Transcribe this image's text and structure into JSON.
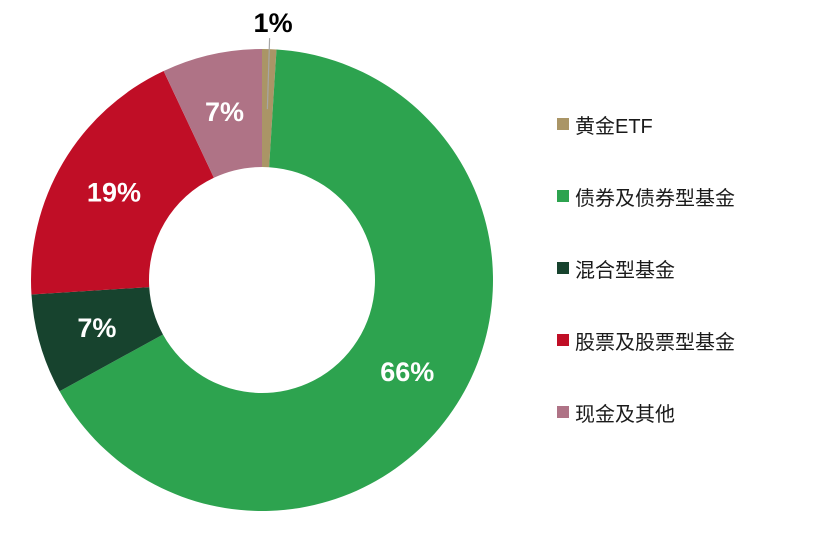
{
  "chart_data": {
    "type": "pie",
    "subtype": "donut",
    "title": "",
    "legend_position": "right",
    "direction": "clockwise",
    "start_angle_deg": 0,
    "inner_radius_ratio": 0.49,
    "background_color": "#FFFFFF",
    "data_label_color": "#FFFFFF",
    "outside_label_color": "#000000",
    "leader_line_color": "#A6A6A6",
    "series": [
      {
        "label": "黄金ETF",
        "value": 1,
        "data_label": "1%",
        "color": "#AA9566",
        "label_style": "outside"
      },
      {
        "label": "债券及债券型基金",
        "value": 66,
        "data_label": "66%",
        "color": "#2DA34F",
        "label_style": "inside"
      },
      {
        "label": "混合型基金",
        "value": 7,
        "data_label": "7%",
        "color": "#17432E",
        "label_style": "inside"
      },
      {
        "label": "股票及股票型基金",
        "value": 19,
        "data_label": "19%",
        "color": "#C00E26",
        "label_style": "inside"
      },
      {
        "label": "现金及其他",
        "value": 7,
        "data_label": "7%",
        "color": "#AF7386",
        "label_style": "inside"
      }
    ]
  }
}
